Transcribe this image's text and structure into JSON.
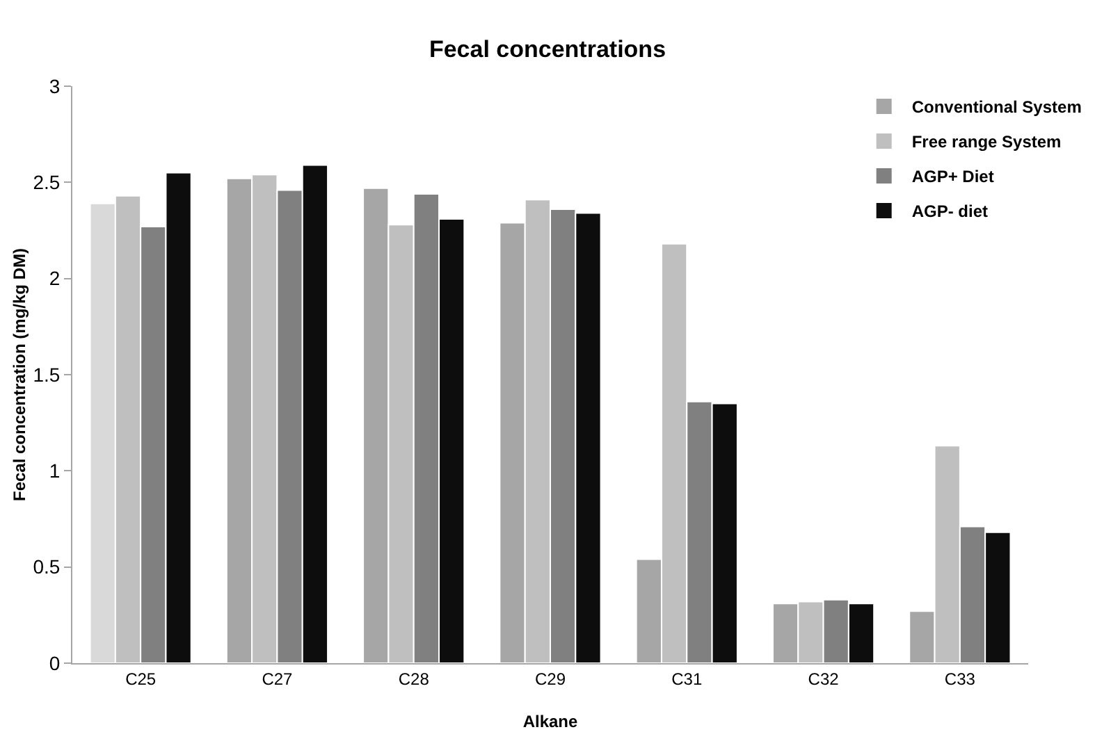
{
  "chart_data": {
    "type": "bar",
    "title": "Fecal concentrations",
    "xlabel": "Alkane",
    "ylabel": "Fecal concentration (mg/kg DM)",
    "categories": [
      "C25",
      "C27",
      "C28",
      "C29",
      "C31",
      "C32",
      "C33"
    ],
    "series": [
      {
        "name": "Conventional System",
        "color": "#a6a6a6",
        "colors": [
          "#d9d9d9",
          "#a6a6a6",
          "#a6a6a6",
          "#a6a6a6",
          "#a6a6a6",
          "#a6a6a6",
          "#a6a6a6"
        ],
        "values": [
          2.39,
          2.52,
          2.47,
          2.29,
          0.54,
          0.31,
          0.27
        ]
      },
      {
        "name": "Free range System",
        "color": "#bfbfbf",
        "values": [
          2.43,
          2.54,
          2.28,
          2.41,
          2.18,
          0.32,
          1.13
        ]
      },
      {
        "name": "AGP+ Diet",
        "color": "#808080",
        "values": [
          2.27,
          2.46,
          2.44,
          2.36,
          1.36,
          0.33,
          0.71
        ]
      },
      {
        "name": "AGP- diet",
        "color": "#0d0d0d",
        "values": [
          2.55,
          2.59,
          2.31,
          2.34,
          1.35,
          0.31,
          0.68
        ]
      }
    ],
    "ylim": [
      0,
      3
    ],
    "yticks": [
      0,
      0.5,
      1,
      1.5,
      2,
      2.5,
      3
    ],
    "grid": false,
    "legend": "top right"
  }
}
